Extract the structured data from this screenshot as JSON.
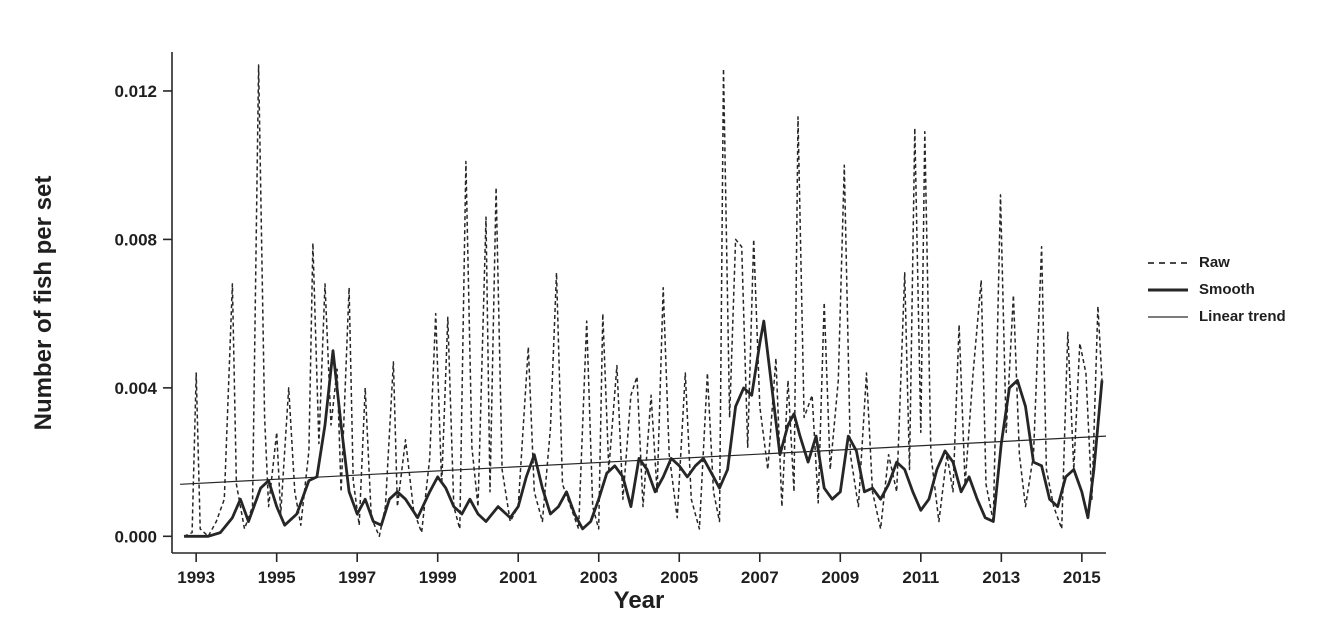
{
  "figure": {
    "background": "#ffffff",
    "ink_color": "#262626"
  },
  "chart_data": {
    "type": "line",
    "title": "",
    "xlabel": "Year",
    "ylabel": "Number of fish per set",
    "xlim": [
      1992.4,
      2015.6
    ],
    "ylim": [
      -0.00045,
      0.01305
    ],
    "xticks": [
      1993,
      1995,
      1997,
      1999,
      2001,
      2003,
      2005,
      2007,
      2009,
      2011,
      2013,
      2015
    ],
    "yticks": [
      0.0,
      0.004,
      0.008,
      0.012
    ],
    "ytick_labels": [
      "0.000",
      "0.004",
      "0.008",
      "0.012"
    ],
    "grid": false,
    "legend_position": "right-outside",
    "series": [
      {
        "id": "raw",
        "name": "Raw",
        "style": "dashed",
        "width": 1.5,
        "points": [
          [
            1992.7,
            0.0
          ],
          [
            1992.9,
            0.0001
          ],
          [
            1993.0,
            0.0044
          ],
          [
            1993.1,
            0.0002
          ],
          [
            1993.3,
            0.0
          ],
          [
            1993.5,
            0.0004
          ],
          [
            1993.7,
            0.001
          ],
          [
            1993.9,
            0.0068
          ],
          [
            1994.0,
            0.0014
          ],
          [
            1994.2,
            0.0002
          ],
          [
            1994.4,
            0.0008
          ],
          [
            1994.55,
            0.0127
          ],
          [
            1994.7,
            0.0032
          ],
          [
            1994.8,
            0.0008
          ],
          [
            1995.0,
            0.0028
          ],
          [
            1995.1,
            0.0006
          ],
          [
            1995.3,
            0.004
          ],
          [
            1995.45,
            0.0012
          ],
          [
            1995.6,
            0.0003
          ],
          [
            1995.8,
            0.0023
          ],
          [
            1995.9,
            0.0079
          ],
          [
            1996.05,
            0.0025
          ],
          [
            1996.2,
            0.0068
          ],
          [
            1996.35,
            0.003
          ],
          [
            1996.5,
            0.0045
          ],
          [
            1996.6,
            0.0012
          ],
          [
            1996.8,
            0.0067
          ],
          [
            1996.9,
            0.0015
          ],
          [
            1997.05,
            0.0003
          ],
          [
            1997.2,
            0.004
          ],
          [
            1997.35,
            0.0005
          ],
          [
            1997.55,
            0.0
          ],
          [
            1997.7,
            0.0008
          ],
          [
            1997.9,
            0.0047
          ],
          [
            1998.0,
            0.0008
          ],
          [
            1998.2,
            0.0026
          ],
          [
            1998.4,
            0.0007
          ],
          [
            1998.6,
            0.0001
          ],
          [
            1998.8,
            0.0021
          ],
          [
            1998.95,
            0.006
          ],
          [
            1999.1,
            0.0014
          ],
          [
            1999.25,
            0.0059
          ],
          [
            1999.4,
            0.0008
          ],
          [
            1999.55,
            0.0002
          ],
          [
            1999.7,
            0.0101
          ],
          [
            1999.85,
            0.0024
          ],
          [
            2000.0,
            0.0008
          ],
          [
            2000.2,
            0.0086
          ],
          [
            2000.3,
            0.0012
          ],
          [
            2000.45,
            0.0094
          ],
          [
            2000.6,
            0.0018
          ],
          [
            2000.8,
            0.0004
          ],
          [
            2001.0,
            0.0008
          ],
          [
            2001.25,
            0.0051
          ],
          [
            2001.4,
            0.0012
          ],
          [
            2001.6,
            0.0004
          ],
          [
            2001.8,
            0.0029
          ],
          [
            2001.95,
            0.0071
          ],
          [
            2002.1,
            0.0014
          ],
          [
            2002.3,
            0.0008
          ],
          [
            2002.5,
            0.0002
          ],
          [
            2002.7,
            0.0058
          ],
          [
            2002.85,
            0.0008
          ],
          [
            2003.0,
            0.0002
          ],
          [
            2003.1,
            0.006
          ],
          [
            2003.25,
            0.0018
          ],
          [
            2003.45,
            0.0046
          ],
          [
            2003.6,
            0.001
          ],
          [
            2003.8,
            0.0038
          ],
          [
            2003.95,
            0.0043
          ],
          [
            2004.1,
            0.0008
          ],
          [
            2004.3,
            0.0038
          ],
          [
            2004.45,
            0.0012
          ],
          [
            2004.6,
            0.0067
          ],
          [
            2004.75,
            0.0022
          ],
          [
            2004.95,
            0.0005
          ],
          [
            2005.15,
            0.0044
          ],
          [
            2005.3,
            0.001
          ],
          [
            2005.5,
            0.0002
          ],
          [
            2005.7,
            0.0044
          ],
          [
            2005.85,
            0.0012
          ],
          [
            2006.0,
            0.0004
          ],
          [
            2006.1,
            0.0126
          ],
          [
            2006.25,
            0.0032
          ],
          [
            2006.4,
            0.008
          ],
          [
            2006.55,
            0.0078
          ],
          [
            2006.7,
            0.0024
          ],
          [
            2006.85,
            0.008
          ],
          [
            2007.0,
            0.0035
          ],
          [
            2007.2,
            0.0018
          ],
          [
            2007.4,
            0.0048
          ],
          [
            2007.55,
            0.0008
          ],
          [
            2007.7,
            0.0042
          ],
          [
            2007.85,
            0.0012
          ],
          [
            2007.95,
            0.0113
          ],
          [
            2008.1,
            0.0032
          ],
          [
            2008.3,
            0.0038
          ],
          [
            2008.45,
            0.0009
          ],
          [
            2008.6,
            0.0063
          ],
          [
            2008.75,
            0.0018
          ],
          [
            2008.95,
            0.0042
          ],
          [
            2009.1,
            0.01
          ],
          [
            2009.25,
            0.0022
          ],
          [
            2009.45,
            0.0008
          ],
          [
            2009.65,
            0.0044
          ],
          [
            2009.8,
            0.0012
          ],
          [
            2010.0,
            0.0002
          ],
          [
            2010.2,
            0.0022
          ],
          [
            2010.4,
            0.0012
          ],
          [
            2010.6,
            0.0071
          ],
          [
            2010.72,
            0.0018
          ],
          [
            2010.85,
            0.011
          ],
          [
            2011.0,
            0.0028
          ],
          [
            2011.1,
            0.0109
          ],
          [
            2011.25,
            0.0022
          ],
          [
            2011.45,
            0.0004
          ],
          [
            2011.65,
            0.0022
          ],
          [
            2011.8,
            0.0012
          ],
          [
            2011.95,
            0.0057
          ],
          [
            2012.1,
            0.0014
          ],
          [
            2012.3,
            0.0044
          ],
          [
            2012.5,
            0.0069
          ],
          [
            2012.62,
            0.0014
          ],
          [
            2012.8,
            0.0004
          ],
          [
            2012.98,
            0.0092
          ],
          [
            2013.12,
            0.0028
          ],
          [
            2013.3,
            0.0065
          ],
          [
            2013.45,
            0.0022
          ],
          [
            2013.6,
            0.0008
          ],
          [
            2013.8,
            0.0022
          ],
          [
            2014.0,
            0.0078
          ],
          [
            2014.12,
            0.0018
          ],
          [
            2014.3,
            0.0008
          ],
          [
            2014.5,
            0.0002
          ],
          [
            2014.65,
            0.0055
          ],
          [
            2014.8,
            0.0018
          ],
          [
            2014.95,
            0.0052
          ],
          [
            2015.1,
            0.0044
          ],
          [
            2015.25,
            0.001
          ],
          [
            2015.4,
            0.0062
          ],
          [
            2015.5,
            0.0042
          ]
        ]
      },
      {
        "id": "smooth",
        "name": "Smooth",
        "style": "solid",
        "width": 2.8,
        "points": [
          [
            1992.7,
            0.0
          ],
          [
            1993.0,
            0.0
          ],
          [
            1993.3,
            0.0
          ],
          [
            1993.6,
            0.0001
          ],
          [
            1993.9,
            0.0005
          ],
          [
            1994.1,
            0.001
          ],
          [
            1994.3,
            0.0004
          ],
          [
            1994.6,
            0.0013
          ],
          [
            1994.8,
            0.0015
          ],
          [
            1995.0,
            0.0008
          ],
          [
            1995.2,
            0.0003
          ],
          [
            1995.5,
            0.0006
          ],
          [
            1995.8,
            0.0015
          ],
          [
            1996.0,
            0.0016
          ],
          [
            1996.2,
            0.003
          ],
          [
            1996.4,
            0.005
          ],
          [
            1996.6,
            0.003
          ],
          [
            1996.8,
            0.0012
          ],
          [
            1997.0,
            0.0006
          ],
          [
            1997.2,
            0.001
          ],
          [
            1997.4,
            0.0004
          ],
          [
            1997.6,
            0.0003
          ],
          [
            1997.8,
            0.001
          ],
          [
            1998.0,
            0.0012
          ],
          [
            1998.2,
            0.001
          ],
          [
            1998.5,
            0.0005
          ],
          [
            1998.8,
            0.0012
          ],
          [
            1999.0,
            0.0016
          ],
          [
            1999.2,
            0.0013
          ],
          [
            1999.4,
            0.0008
          ],
          [
            1999.6,
            0.0006
          ],
          [
            1999.8,
            0.001
          ],
          [
            2000.0,
            0.0006
          ],
          [
            2000.2,
            0.0004
          ],
          [
            2000.5,
            0.0008
          ],
          [
            2000.8,
            0.0005
          ],
          [
            2001.0,
            0.0008
          ],
          [
            2001.2,
            0.0016
          ],
          [
            2001.4,
            0.0022
          ],
          [
            2001.6,
            0.0013
          ],
          [
            2001.8,
            0.0006
          ],
          [
            2002.0,
            0.0008
          ],
          [
            2002.2,
            0.0012
          ],
          [
            2002.4,
            0.0006
          ],
          [
            2002.6,
            0.0002
          ],
          [
            2002.8,
            0.0004
          ],
          [
            2003.0,
            0.001
          ],
          [
            2003.2,
            0.0017
          ],
          [
            2003.4,
            0.0019
          ],
          [
            2003.6,
            0.0016
          ],
          [
            2003.8,
            0.0008
          ],
          [
            2004.0,
            0.0021
          ],
          [
            2004.2,
            0.0018
          ],
          [
            2004.4,
            0.0012
          ],
          [
            2004.6,
            0.0016
          ],
          [
            2004.8,
            0.0021
          ],
          [
            2005.0,
            0.0019
          ],
          [
            2005.2,
            0.0016
          ],
          [
            2005.4,
            0.0019
          ],
          [
            2005.6,
            0.0021
          ],
          [
            2005.8,
            0.0017
          ],
          [
            2006.0,
            0.0013
          ],
          [
            2006.2,
            0.0018
          ],
          [
            2006.4,
            0.0035
          ],
          [
            2006.6,
            0.004
          ],
          [
            2006.8,
            0.0038
          ],
          [
            2007.0,
            0.0052
          ],
          [
            2007.1,
            0.0058
          ],
          [
            2007.3,
            0.004
          ],
          [
            2007.5,
            0.0022
          ],
          [
            2007.7,
            0.003
          ],
          [
            2007.85,
            0.0033
          ],
          [
            2008.0,
            0.0027
          ],
          [
            2008.2,
            0.002
          ],
          [
            2008.4,
            0.0027
          ],
          [
            2008.6,
            0.0013
          ],
          [
            2008.8,
            0.001
          ],
          [
            2009.0,
            0.0012
          ],
          [
            2009.2,
            0.0027
          ],
          [
            2009.4,
            0.0023
          ],
          [
            2009.6,
            0.0012
          ],
          [
            2009.8,
            0.0013
          ],
          [
            2010.0,
            0.001
          ],
          [
            2010.2,
            0.0014
          ],
          [
            2010.4,
            0.002
          ],
          [
            2010.6,
            0.0018
          ],
          [
            2010.8,
            0.0012
          ],
          [
            2011.0,
            0.0007
          ],
          [
            2011.2,
            0.001
          ],
          [
            2011.4,
            0.0018
          ],
          [
            2011.6,
            0.0023
          ],
          [
            2011.8,
            0.002
          ],
          [
            2012.0,
            0.0012
          ],
          [
            2012.2,
            0.0016
          ],
          [
            2012.4,
            0.001
          ],
          [
            2012.6,
            0.0005
          ],
          [
            2012.8,
            0.0004
          ],
          [
            2013.0,
            0.0025
          ],
          [
            2013.2,
            0.004
          ],
          [
            2013.4,
            0.0042
          ],
          [
            2013.6,
            0.0035
          ],
          [
            2013.8,
            0.002
          ],
          [
            2014.0,
            0.0019
          ],
          [
            2014.2,
            0.001
          ],
          [
            2014.4,
            0.0008
          ],
          [
            2014.6,
            0.0016
          ],
          [
            2014.8,
            0.0018
          ],
          [
            2015.0,
            0.0012
          ],
          [
            2015.15,
            0.0005
          ],
          [
            2015.3,
            0.0018
          ],
          [
            2015.5,
            0.0042
          ]
        ]
      },
      {
        "id": "linear-trend",
        "name": "Linear trend",
        "style": "solid",
        "width": 1.2,
        "points": [
          [
            1992.6,
            0.0014
          ],
          [
            2015.6,
            0.0027
          ]
        ]
      }
    ]
  }
}
